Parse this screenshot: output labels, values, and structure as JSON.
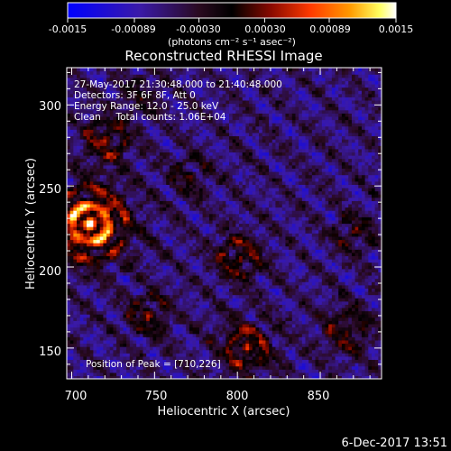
{
  "chart_data": {
    "type": "heatmap",
    "title": "Reconstructed RHESSI Image",
    "xlabel": "Heliocentric X (arcsec)",
    "ylabel": "Heliocentric Y (arcsec)",
    "xlim": [
      697,
      887
    ],
    "ylim": [
      131,
      323
    ],
    "x_ticks": [
      700,
      750,
      800,
      850
    ],
    "y_ticks": [
      150,
      200,
      250,
      300
    ],
    "colorbar": {
      "ticks": [
        "-0.0015",
        "-0.00089",
        "-0.00030",
        "0.00030",
        "0.00089",
        "0.0015"
      ],
      "range": [
        -0.0015,
        0.0015
      ],
      "unit_label": "(photons cm⁻² s⁻¹ asec⁻²)",
      "colors": [
        "#0000ff",
        "#4020a0",
        "#2a0a20",
        "#000000",
        "#8a0a00",
        "#ff3a00",
        "#ff9a00",
        "#ffff60",
        "#ffffff"
      ]
    },
    "annotations": [
      "27-May-2017 21:30:48.000 to 21:40:48.000",
      "Detectors: 3F 6F 8F, Att 0",
      "Energy Range: 12.0 - 25.0 keV",
      "Clean     Total counts: 1.06E+04"
    ],
    "peak": {
      "label": "Position of Peak = [710,226]",
      "x": 710,
      "y": 226
    },
    "hotspots": [
      {
        "x": 710,
        "y": 226,
        "amp": 1.0,
        "sigma": 22
      },
      {
        "x": 720,
        "y": 278,
        "amp": 0.55,
        "sigma": 14
      },
      {
        "x": 800,
        "y": 205,
        "amp": 0.55,
        "sigma": 14
      },
      {
        "x": 805,
        "y": 150,
        "amp": 0.6,
        "sigma": 16
      },
      {
        "x": 865,
        "y": 160,
        "amp": 0.45,
        "sigma": 14
      },
      {
        "x": 870,
        "y": 220,
        "amp": 0.4,
        "sigma": 12
      },
      {
        "x": 770,
        "y": 255,
        "amp": 0.35,
        "sigma": 12
      },
      {
        "x": 745,
        "y": 170,
        "amp": 0.45,
        "sigma": 13
      },
      {
        "x": 740,
        "y": 305,
        "amp": 0.3,
        "sigma": 12
      }
    ],
    "grid": false
  },
  "footer": {
    "timestamp": "6-Dec-2017 13:51"
  }
}
